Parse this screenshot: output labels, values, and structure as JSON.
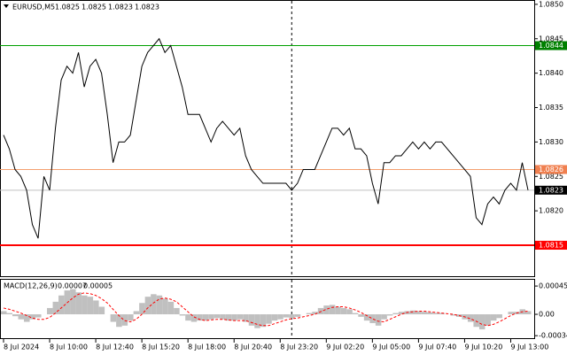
{
  "chart_data": [
    {
      "type": "line",
      "title": "EURUSD,M5",
      "ohlc": [
        1.0825,
        1.0825,
        1.0823,
        1.0823
      ],
      "color": "#000000",
      "xlim": [
        0,
        91
      ],
      "separator": 50,
      "ylim": [
        1.08105,
        1.08505
      ],
      "yticks": [
        {
          "value": 1.085,
          "label": "1.0850"
        },
        1.0845,
        {
          "value": 1.084,
          "label": "1.0840"
        },
        1.0835,
        {
          "value": 1.083,
          "label": "1.0830"
        },
        1.0825,
        {
          "value": 1.082,
          "label": "1.0820"
        }
      ],
      "levels": [
        {
          "value": 1.0844,
          "color": "#00a000",
          "label_color": "#008000"
        },
        {
          "value": 1.0826,
          "color": "#f4a070",
          "label_color": "#f08050"
        },
        {
          "value": 1.0823,
          "color": "#c0c0c0",
          "label_color": "#000000"
        },
        {
          "value": 1.0815,
          "color": "#ff0000",
          "label_color": "#ff0000"
        }
      ],
      "values": [
        1.0831,
        1.0829,
        1.0826,
        1.0825,
        1.0823,
        1.0818,
        1.0816,
        1.0825,
        1.0823,
        1.0832,
        1.0839,
        1.0841,
        1.084,
        1.0843,
        1.0838,
        1.0841,
        1.0842,
        1.084,
        1.0834,
        1.0827,
        1.083,
        1.083,
        1.0831,
        1.0836,
        1.0841,
        1.0843,
        1.0844,
        1.0845,
        1.0843,
        1.0844,
        1.0841,
        1.0838,
        1.0834,
        1.0834,
        1.0834,
        1.0832,
        1.083,
        1.0832,
        1.0833,
        1.0832,
        1.0831,
        1.0832,
        1.0828,
        1.0826,
        1.0825,
        1.0824,
        1.0824,
        1.0824,
        1.0824,
        1.0824,
        1.0823,
        1.0824,
        1.0826,
        1.0826,
        1.0826,
        1.0828,
        1.083,
        1.0832,
        1.0832,
        1.0831,
        1.0832,
        1.0829,
        1.0829,
        1.0828,
        1.0824,
        1.0821,
        1.0827,
        1.0827,
        1.0828,
        1.0828,
        1.0829,
        1.083,
        1.0829,
        1.083,
        1.0829,
        1.083,
        1.083,
        1.0829,
        1.0828,
        1.0827,
        1.0826,
        1.0825,
        1.0819,
        1.0818,
        1.0821,
        1.0822,
        1.0821,
        1.0823,
        1.0824,
        1.0823,
        1.0827,
        1.0823
      ]
    },
    {
      "type": "macd",
      "title": "MACD(12,26,9)",
      "indicator_values": [
        7e-05,
        5e-05
      ],
      "xlim": [
        0,
        91
      ],
      "separator": 50,
      "ylim": [
        -0.00038,
        0.00055
      ],
      "yticks": [
        0.00045,
        {
          "value": 0,
          "label": "0.00"
        },
        -0.00034
      ],
      "xticks": [
        {
          "value": 0,
          "label": "8 Jul 2024"
        },
        {
          "value": 8,
          "label": "8 Jul 10:00"
        },
        {
          "value": 16,
          "label": "8 Jul 12:40"
        },
        {
          "value": 24,
          "label": "8 Jul 15:20"
        },
        {
          "value": 32,
          "label": "8 Jul 18:00"
        },
        {
          "value": 40,
          "label": "8 Jul 20:40"
        },
        {
          "value": 48,
          "label": "8 Jul 23:20"
        },
        {
          "value": 56,
          "label": "9 Jul 02:20"
        },
        {
          "value": 64,
          "label": "9 Jul 05:00"
        },
        {
          "value": 72,
          "label": "9 Jul 07:40"
        },
        {
          "value": 80,
          "label": "9 Jul 10:20"
        },
        {
          "value": 88,
          "label": "9 Jul 13:00"
        }
      ],
      "series": [
        {
          "color": "#c0c0c0",
          "values": [
            5e-05,
            2e-05,
            -3e-05,
            -8e-05,
            -0.00012,
            -8e-05,
            -5e-05,
            0,
            0.0001,
            0.0002,
            0.0003,
            0.00038,
            0.0004,
            0.00035,
            0.0003,
            0.00028,
            0.00022,
            0.00012,
            0,
            -0.00012,
            -0.0002,
            -0.00018,
            -0.0001,
            5e-05,
            0.00018,
            0.00028,
            0.00032,
            0.0003,
            0.00025,
            0.0002,
            0.0001,
            -2e-05,
            -0.0001,
            -0.00012,
            -0.0001,
            -0.0001,
            -8e-05,
            -6e-05,
            -8e-05,
            -0.0001,
            -0.0001,
            -8e-05,
            -0.00012,
            -0.00018,
            -0.00022,
            -0.0002,
            -0.00015,
            -0.0001,
            -8e-05,
            -5e-05,
            -6e-05,
            -4e-05,
            0,
            2e-05,
            4e-05,
            0.0001,
            0.00014,
            0.00015,
            0.00012,
            0.0001,
            8e-05,
            2e-05,
            -4e-05,
            -0.0001,
            -0.00014,
            -0.00018,
            -8e-05,
            -2e-05,
            2e-05,
            4e-05,
            5e-05,
            6e-05,
            5e-05,
            4e-05,
            3e-05,
            2e-05,
            2e-05,
            0,
            -2e-05,
            -4e-05,
            -8e-05,
            -0.00012,
            -0.0002,
            -0.00024,
            -0.00018,
            -0.0001,
            -6e-05,
            0,
            4e-05,
            4e-05,
            8e-05,
            5e-05
          ]
        },
        {
          "color": "#ff0000",
          "dashed": true,
          "values": [
            0.0001,
            8e-05,
            5e-05,
            2e-05,
            -2e-05,
            -6e-05,
            -8e-05,
            -8e-05,
            -5e-05,
            2e-05,
            0.0001,
            0.00018,
            0.00026,
            0.00032,
            0.00034,
            0.00033,
            0.0003,
            0.00025,
            0.00018,
            8e-05,
            -2e-05,
            -0.0001,
            -0.00012,
            -8e-05,
            0,
            0.0001,
            0.00018,
            0.00024,
            0.00026,
            0.00024,
            0.0002,
            0.00012,
            4e-05,
            -4e-05,
            -8e-05,
            -0.0001,
            -9e-05,
            -8e-05,
            -8e-05,
            -9e-05,
            -0.0001,
            -0.0001,
            -0.0001,
            -0.00013,
            -0.00016,
            -0.00018,
            -0.00018,
            -0.00015,
            -0.00012,
            -9e-05,
            -7e-05,
            -6e-05,
            -4e-05,
            -2e-05,
            0,
            4e-05,
            8e-05,
            0.00011,
            0.00012,
            0.00012,
            0.0001,
            7e-05,
            3e-05,
            -2e-05,
            -7e-05,
            -0.00011,
            -0.00012,
            -8e-05,
            -4e-05,
            0,
            3e-05,
            4e-05,
            5e-05,
            5e-05,
            4e-05,
            3e-05,
            2e-05,
            1e-05,
            0,
            -2e-05,
            -4e-05,
            -7e-05,
            -0.00011,
            -0.00016,
            -0.00018,
            -0.00016,
            -0.00012,
            -7e-05,
            -2e-05,
            2e-05,
            4e-05,
            5e-05
          ]
        }
      ]
    }
  ]
}
